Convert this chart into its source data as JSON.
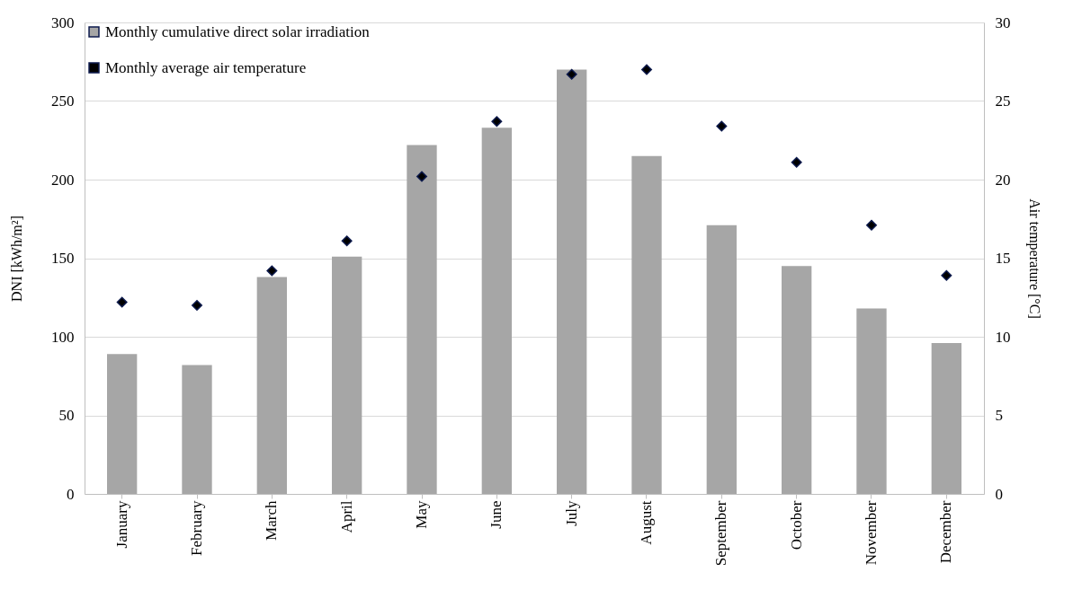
{
  "chart_data": {
    "type": "bar",
    "categories": [
      "January",
      "February",
      "March",
      "April",
      "May",
      "June",
      "July",
      "August",
      "September",
      "October",
      "November",
      "December"
    ],
    "series": [
      {
        "name": "Monthly cumulative direct solar irradiation",
        "color": "#a6a6a6",
        "values": [
          89,
          82,
          138,
          151,
          222,
          233,
          270,
          215,
          171,
          145,
          118,
          96
        ]
      },
      {
        "name": "Monthly average air temperature",
        "type": "scatter",
        "axis": "y2",
        "color": "#000000",
        "marker": "diamond",
        "values": [
          12.2,
          12.0,
          14.2,
          16.1,
          20.2,
          23.7,
          26.7,
          27.0,
          23.4,
          21.1,
          17.1,
          13.9
        ]
      }
    ],
    "ylabel": "DNI [kWh/m²]",
    "y2label": "Air temperature [°C]",
    "ylim": [
      0,
      300
    ],
    "yticks": [
      0,
      50,
      100,
      150,
      200,
      250,
      300
    ],
    "y2lim": [
      0,
      30
    ],
    "y2ticks": [
      0,
      5,
      10,
      15,
      20,
      25,
      30
    ],
    "grid": "y",
    "legend": "top left"
  }
}
